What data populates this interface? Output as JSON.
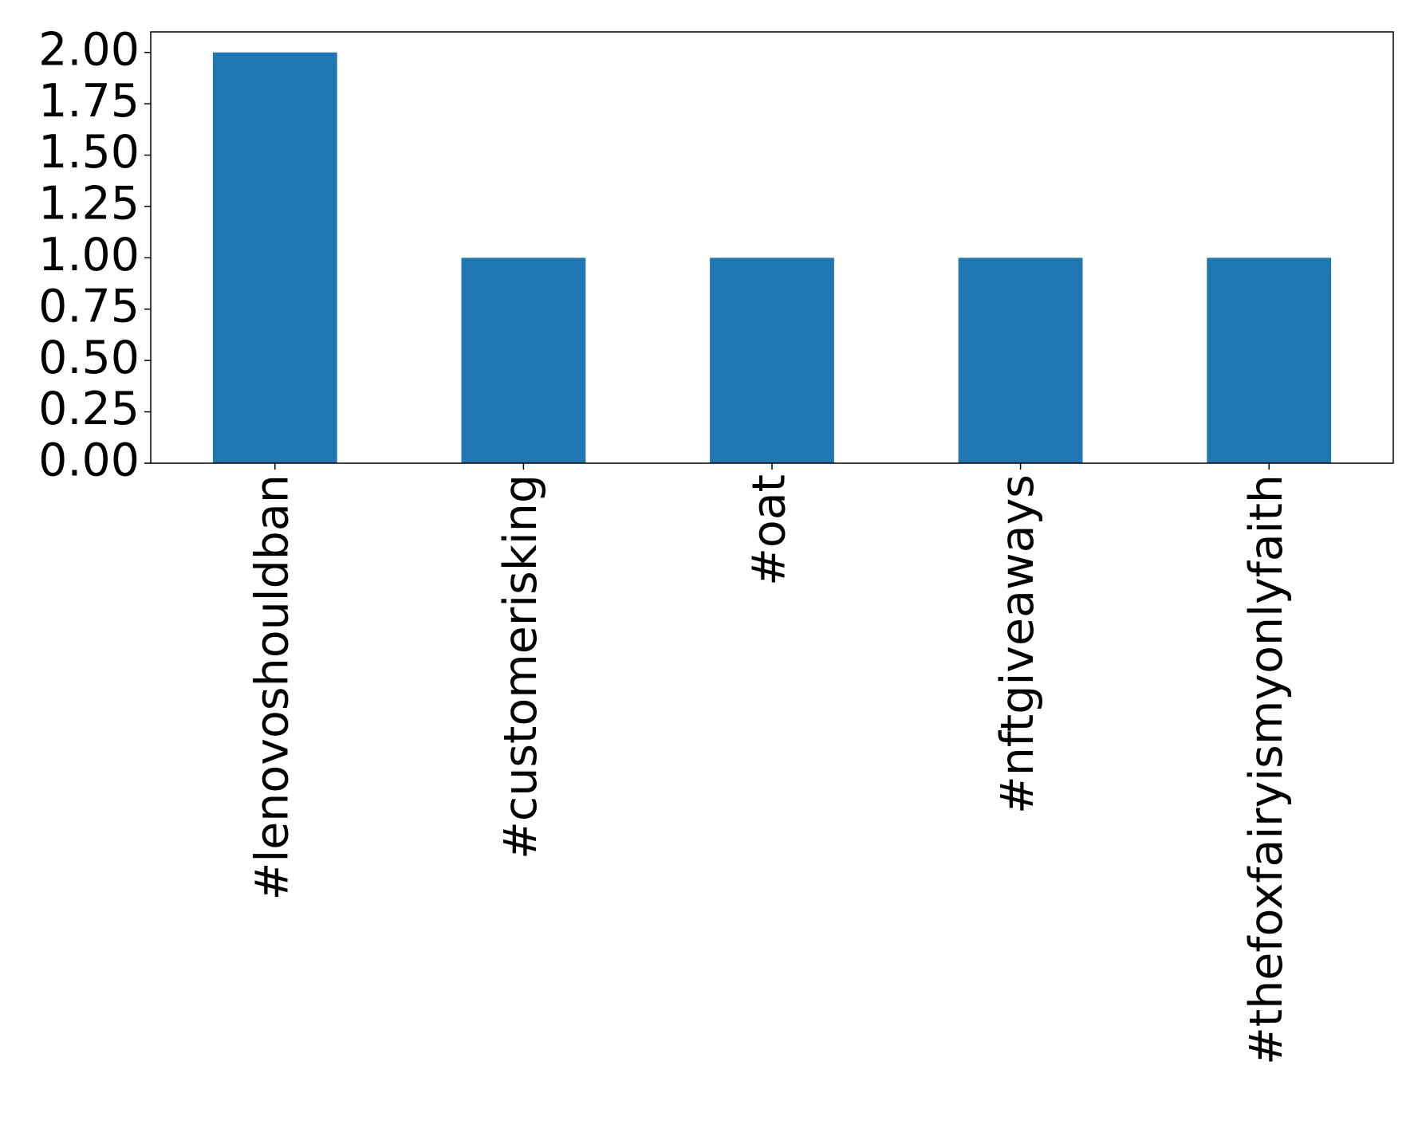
{
  "chart_data": {
    "type": "bar",
    "categories": [
      "#lenovoshouldban",
      "#customerisking",
      "#oat",
      "#nftgiveaways",
      "#thefoxfairyismyonlyfaith"
    ],
    "values": [
      2,
      1,
      1,
      1,
      1
    ],
    "color": "#1f77b4",
    "ylim": [
      0,
      2.1
    ],
    "yticks": [
      {
        "value": 0,
        "label": "0.00"
      },
      {
        "value": 0.25,
        "label": "0.25"
      },
      {
        "value": 0.5,
        "label": "0.50"
      },
      {
        "value": 0.75,
        "label": "0.75"
      },
      {
        "value": 1,
        "label": "1.00"
      },
      {
        "value": 1.25,
        "label": "1.25"
      },
      {
        "value": 1.5,
        "label": "1.50"
      },
      {
        "value": 1.75,
        "label": "1.75"
      },
      {
        "value": 2,
        "label": "2.00"
      }
    ],
    "grid": false
  }
}
